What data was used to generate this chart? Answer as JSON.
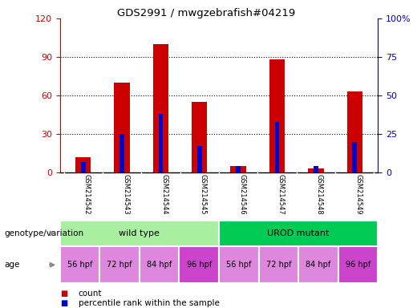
{
  "title": "GDS2991 / mwgzebrafish#04219",
  "samples": [
    "GSM214542",
    "GSM214543",
    "GSM214544",
    "GSM214545",
    "GSM214546",
    "GSM214547",
    "GSM214548",
    "GSM214549"
  ],
  "counts": [
    12,
    70,
    100,
    55,
    5,
    88,
    3,
    63
  ],
  "percentile_ranks": [
    7,
    25,
    38,
    17,
    4,
    33,
    4,
    20
  ],
  "left_ylim": [
    0,
    120
  ],
  "right_ylim": [
    0,
    100
  ],
  "left_yticks": [
    0,
    30,
    60,
    90,
    120
  ],
  "right_yticks": [
    0,
    25,
    50,
    75,
    100
  ],
  "right_yticklabels": [
    "0",
    "25",
    "50",
    "75",
    "100%"
  ],
  "left_ycolor": "#cc0000",
  "right_ycolor": "#0000cc",
  "bar_color": "#cc0000",
  "percentile_color": "#0000cc",
  "bar_width": 0.4,
  "blue_bar_width": 0.12,
  "genotype_groups": [
    {
      "label": "wild type",
      "start": 0,
      "end": 4,
      "color": "#a8f0a0"
    },
    {
      "label": "UROD mutant",
      "start": 4,
      "end": 8,
      "color": "#00cc55"
    }
  ],
  "age_labels": [
    "56 hpf",
    "72 hpf",
    "84 hpf",
    "96 hpf",
    "56 hpf",
    "72 hpf",
    "84 hpf",
    "96 hpf"
  ],
  "age_bg_normal": "#dd88dd",
  "age_bg_highlight": "#cc44cc",
  "age_highlight_indices": [
    3,
    7
  ],
  "xticklabel_area_color": "#cccccc",
  "xticklabel_separator_color": "#ffffff",
  "legend_count_color": "#cc0000",
  "legend_percentile_color": "#0000cc",
  "background_color": "#ffffff",
  "plot_bg_color": "#ffffff",
  "grid_color": "#000000",
  "grid_dotted_ticks": [
    30,
    60,
    90
  ],
  "arrow_color": "#888888",
  "label_geno": "genotype/variation",
  "label_age": "age"
}
